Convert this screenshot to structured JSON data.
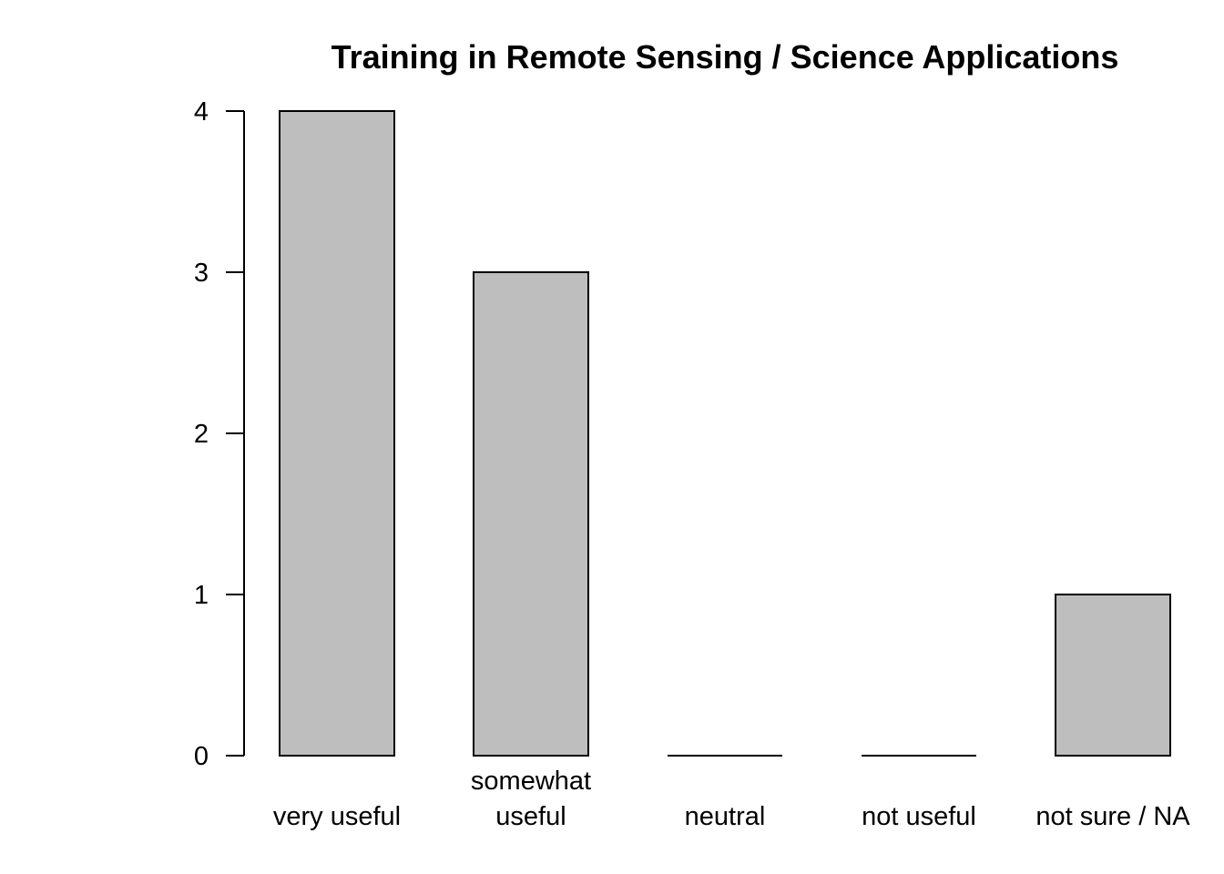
{
  "chart_data": {
    "type": "bar",
    "title": "Training in Remote Sensing / Science Applications",
    "xlabel": "",
    "ylabel": "",
    "categories": [
      [
        "very useful"
      ],
      [
        "somewhat",
        "useful"
      ],
      [
        "neutral"
      ],
      [
        "not useful"
      ],
      [
        "not sure / NA"
      ]
    ],
    "values": [
      4,
      3,
      0,
      0,
      1
    ],
    "ylim": [
      0,
      4
    ],
    "yticks": [
      0,
      1,
      2,
      3,
      4
    ],
    "grid": false,
    "legend": "none",
    "bar_color": "#bebebe",
    "border_color": "#000000"
  }
}
